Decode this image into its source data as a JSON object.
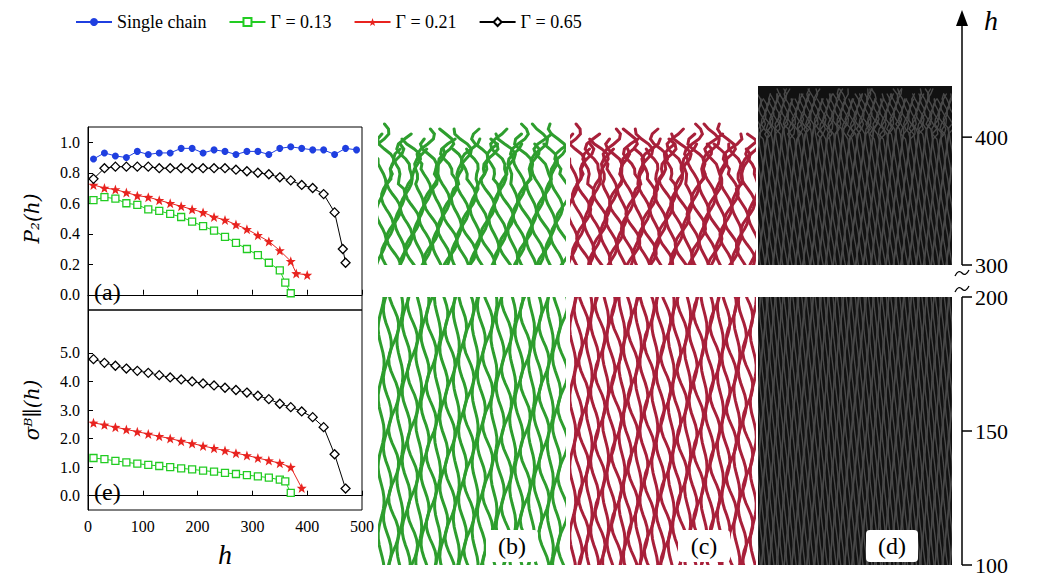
{
  "chart_data": [
    {
      "type": "line",
      "annotations": [
        "(a)"
      ],
      "y_label": "P₂(h)",
      "xlim": [
        0,
        500
      ],
      "xticks": [
        0,
        100,
        200,
        300,
        400,
        500
      ],
      "ylim": [
        -0.1,
        1.1
      ],
      "yticks": [
        {
          "value": 0,
          "label": "0.0"
        },
        {
          "value": 0.2,
          "label": "0.2"
        },
        {
          "value": 0.4,
          "label": "0.4"
        },
        {
          "value": 0.6,
          "label": "0.6"
        },
        {
          "value": 0.8,
          "label": "0.8"
        },
        {
          "value": 1,
          "label": "1.0"
        }
      ],
      "grid": false,
      "tick_labels": "y",
      "legend": "top",
      "series": [
        {
          "name": "Single chain",
          "color": "#1f3fe0",
          "marker": "circle",
          "x": [
            10,
            30,
            50,
            70,
            90,
            110,
            130,
            150,
            170,
            190,
            210,
            230,
            250,
            270,
            290,
            310,
            330,
            350,
            370,
            390,
            410,
            430,
            450,
            470,
            490
          ],
          "values": [
            0.89,
            0.93,
            0.91,
            0.9,
            0.94,
            0.92,
            0.93,
            0.93,
            0.96,
            0.96,
            0.93,
            0.95,
            0.94,
            0.92,
            0.94,
            0.94,
            0.92,
            0.96,
            0.97,
            0.96,
            0.95,
            0.95,
            0.92,
            0.96,
            0.95
          ]
        },
        {
          "name": "Γ = 0.13",
          "color": "#22cc22",
          "marker": "square-open",
          "x": [
            10,
            30,
            50,
            70,
            90,
            110,
            130,
            150,
            170,
            190,
            210,
            230,
            250,
            270,
            290,
            310,
            330,
            350,
            360,
            370
          ],
          "values": [
            0.62,
            0.64,
            0.63,
            0.6,
            0.59,
            0.56,
            0.55,
            0.53,
            0.51,
            0.48,
            0.45,
            0.42,
            0.38,
            0.34,
            0.3,
            0.26,
            0.21,
            0.16,
            0.08,
            0.01
          ]
        },
        {
          "name": "Γ = 0.21",
          "color": "#e8231f",
          "marker": "star",
          "x": [
            10,
            30,
            50,
            70,
            90,
            110,
            130,
            150,
            170,
            190,
            210,
            230,
            250,
            270,
            290,
            310,
            330,
            350,
            370,
            380,
            400
          ],
          "values": [
            0.72,
            0.7,
            0.69,
            0.67,
            0.65,
            0.64,
            0.62,
            0.6,
            0.58,
            0.56,
            0.54,
            0.51,
            0.49,
            0.46,
            0.43,
            0.39,
            0.35,
            0.29,
            0.22,
            0.14,
            0.13
          ]
        },
        {
          "name": "Γ = 0.65",
          "color": "#000000",
          "marker": "diamond-open",
          "x": [
            10,
            30,
            50,
            70,
            90,
            110,
            130,
            150,
            170,
            190,
            210,
            230,
            250,
            270,
            290,
            310,
            330,
            350,
            370,
            390,
            410,
            430,
            450,
            465,
            470
          ],
          "values": [
            0.76,
            0.83,
            0.84,
            0.84,
            0.84,
            0.84,
            0.83,
            0.83,
            0.83,
            0.83,
            0.83,
            0.83,
            0.83,
            0.82,
            0.81,
            0.8,
            0.79,
            0.77,
            0.75,
            0.72,
            0.7,
            0.66,
            0.54,
            0.3,
            0.21
          ]
        }
      ]
    },
    {
      "type": "line",
      "annotations": [
        "(e)"
      ],
      "x_label": "h",
      "y_label": "σᴮ∥(h)",
      "xlim": [
        0,
        500
      ],
      "xticks": [
        0,
        100,
        200,
        300,
        400,
        500
      ],
      "ylim": [
        -0.5,
        6.5
      ],
      "yticks": [
        {
          "value": 0,
          "label": "0.0"
        },
        {
          "value": 1,
          "label": "1.0"
        },
        {
          "value": 2,
          "label": "2.0"
        },
        {
          "value": 3,
          "label": "3.0"
        },
        {
          "value": 4,
          "label": "4.0"
        },
        {
          "value": 5,
          "label": "5.0"
        }
      ],
      "grid": false,
      "series": [
        {
          "name": "Γ = 0.13",
          "color": "#22cc22",
          "marker": "square-open",
          "x": [
            10,
            30,
            50,
            70,
            90,
            110,
            130,
            150,
            170,
            190,
            210,
            230,
            250,
            270,
            290,
            310,
            330,
            350,
            360,
            370
          ],
          "values": [
            1.32,
            1.28,
            1.22,
            1.17,
            1.12,
            1.08,
            1.04,
            1.0,
            0.96,
            0.92,
            0.88,
            0.84,
            0.8,
            0.76,
            0.72,
            0.68,
            0.63,
            0.56,
            0.5,
            0.1
          ]
        },
        {
          "name": "Γ = 0.21",
          "color": "#e8231f",
          "marker": "star",
          "x": [
            10,
            30,
            50,
            70,
            90,
            110,
            130,
            150,
            170,
            190,
            210,
            230,
            250,
            270,
            290,
            310,
            330,
            350,
            370,
            390
          ],
          "values": [
            2.55,
            2.48,
            2.4,
            2.32,
            2.24,
            2.16,
            2.08,
            2.0,
            1.91,
            1.83,
            1.74,
            1.66,
            1.58,
            1.49,
            1.41,
            1.32,
            1.23,
            1.14,
            1.0,
            0.27
          ]
        },
        {
          "name": "Γ = 0.65",
          "color": "#000000",
          "marker": "diamond-open",
          "x": [
            10,
            30,
            50,
            70,
            90,
            110,
            130,
            150,
            170,
            190,
            210,
            230,
            250,
            270,
            290,
            310,
            330,
            350,
            370,
            390,
            410,
            430,
            450,
            470
          ],
          "values": [
            4.78,
            4.65,
            4.55,
            4.45,
            4.37,
            4.3,
            4.22,
            4.14,
            4.07,
            4.0,
            3.93,
            3.86,
            3.78,
            3.7,
            3.61,
            3.5,
            3.38,
            3.22,
            3.1,
            2.95,
            2.75,
            2.4,
            1.45,
            0.25
          ]
        }
      ]
    }
  ],
  "images": {
    "panels": [
      {
        "label": "(b)",
        "color": "#2e9e2e"
      },
      {
        "label": "(c)",
        "color": "#a8203a"
      },
      {
        "label": "(d)",
        "color": "#111111"
      }
    ],
    "h_axis": {
      "title": "h",
      "segments": [
        {
          "range": [
            100,
            200
          ],
          "ticks": [
            100,
            150,
            200
          ]
        },
        {
          "range": [
            300,
            440
          ],
          "ticks": [
            300,
            400
          ]
        }
      ]
    }
  }
}
